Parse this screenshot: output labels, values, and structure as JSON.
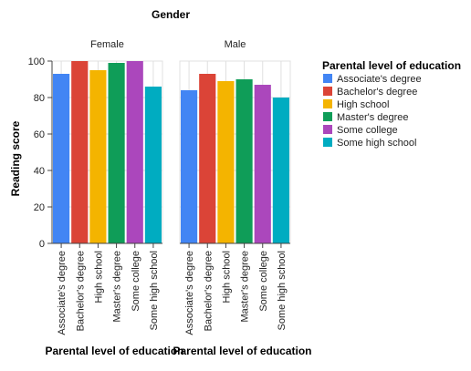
{
  "chart_data": {
    "type": "bar",
    "facet_title": "Gender",
    "facets": [
      "Female",
      "Male"
    ],
    "categories": [
      "Associate's degree",
      "Bachelor's degree",
      "High school",
      "Master's degree",
      "Some college",
      "Some high school"
    ],
    "ylabel": "Reading score",
    "xlabel": "Parental level of education",
    "ylim": [
      0,
      100
    ],
    "yticks": [
      0,
      20,
      40,
      60,
      80,
      100
    ],
    "grid": true,
    "legend_title": "Parental level of education",
    "legend_position": "right",
    "colors": [
      "#4285f4",
      "#db4437",
      "#f4b400",
      "#0f9d58",
      "#ab47bc",
      "#00acc1"
    ],
    "series": [
      {
        "name": "Female",
        "values": [
          93,
          100,
          95,
          99,
          100,
          86
        ]
      },
      {
        "name": "Male",
        "values": [
          84,
          93,
          89,
          90,
          87,
          80
        ]
      }
    ]
  }
}
